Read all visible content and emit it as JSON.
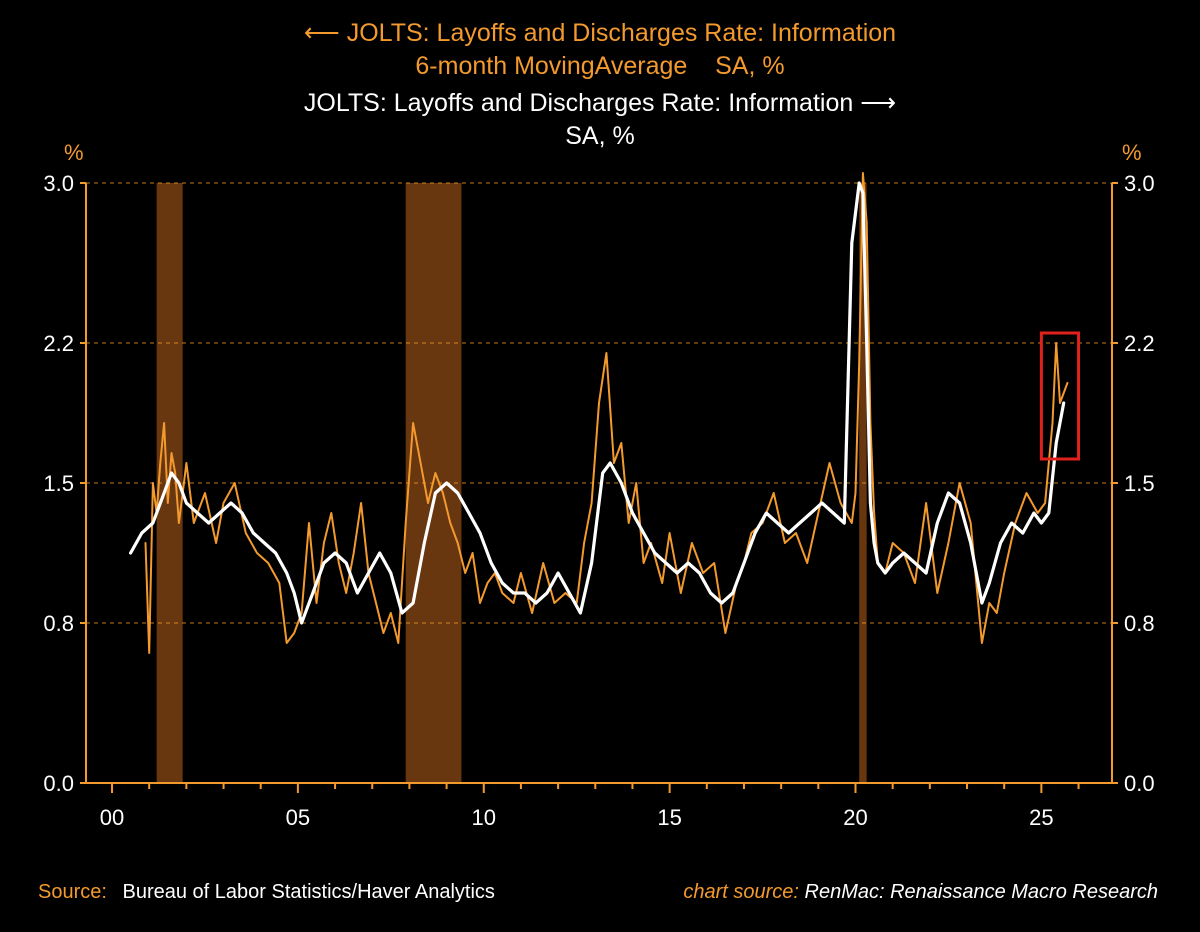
{
  "titles": {
    "orange_line1": "JOLTS: Layoffs and Discharges Rate: Information",
    "orange_line2": "6-month MovingAverage    SA, %",
    "white_line1": "JOLTS: Layoffs and Discharges Rate: Information",
    "white_line2": "SA, %"
  },
  "units": {
    "left": "%",
    "right": "%"
  },
  "footer": {
    "source_label": "Source:",
    "source_text": "Bureau of Labor Statistics/Haver Analytics",
    "chart_source_label": "chart source:",
    "chart_source_text": "RenMac: Renaissance Macro Research"
  },
  "colors": {
    "background": "#000000",
    "monthly": "#f39a2e",
    "average": "#ffffff",
    "recession": "#7a3f12",
    "highlight": "#e0211c",
    "axis": "#f39a2e"
  },
  "chart_data": {
    "type": "line",
    "x_axis": {
      "range": [
        1999.3,
        2026.9
      ],
      "ticks": [
        2000,
        2005,
        2010,
        2015,
        2020,
        2025
      ],
      "tick_labels": [
        "00",
        "05",
        "10",
        "15",
        "20",
        "25"
      ]
    },
    "y_left": {
      "range": [
        0.0,
        3.0
      ],
      "ticks": [
        0.0,
        0.8,
        1.5,
        2.2,
        3.0
      ],
      "tick_labels": [
        "0.0",
        "0.8",
        "1.5",
        "2.2",
        "3.0"
      ]
    },
    "y_right": {
      "range": [
        0.0,
        3.0
      ],
      "ticks": [
        0.0,
        0.8,
        1.5,
        2.2,
        3.0
      ],
      "tick_labels": [
        "0.0",
        "0.8",
        "1.5",
        "2.2",
        "3.0"
      ]
    },
    "gridlines": "horizontal dashed at 0.8, 1.5, 2.2, 3.0",
    "recession_shading": [
      [
        2001.2,
        2001.9
      ],
      [
        2007.9,
        2009.4
      ],
      [
        2020.1,
        2020.3
      ]
    ],
    "highlight_box": {
      "x": [
        2025.0,
        2026.0
      ],
      "y": [
        1.62,
        2.25
      ]
    },
    "series": [
      {
        "name": "JOLTS: Layoffs and Discharges Rate: Information, SA, %",
        "color": "#f39a2e",
        "x": [
          2000.9,
          2001.0,
          2001.1,
          2001.2,
          2001.3,
          2001.4,
          2001.5,
          2001.6,
          2001.7,
          2001.8,
          2001.9,
          2002.0,
          2002.2,
          2002.5,
          2002.8,
          2003.0,
          2003.3,
          2003.6,
          2003.9,
          2004.2,
          2004.5,
          2004.7,
          2004.9,
          2005.1,
          2005.3,
          2005.5,
          2005.7,
          2005.9,
          2006.1,
          2006.3,
          2006.5,
          2006.7,
          2006.9,
          2007.1,
          2007.3,
          2007.5,
          2007.7,
          2007.9,
          2008.1,
          2008.3,
          2008.5,
          2008.7,
          2008.9,
          2009.1,
          2009.3,
          2009.5,
          2009.7,
          2009.9,
          2010.1,
          2010.3,
          2010.5,
          2010.8,
          2011.0,
          2011.3,
          2011.6,
          2011.9,
          2012.2,
          2012.5,
          2012.7,
          2012.9,
          2013.1,
          2013.3,
          2013.5,
          2013.7,
          2013.9,
          2014.1,
          2014.3,
          2014.5,
          2014.8,
          2015.0,
          2015.3,
          2015.6,
          2015.9,
          2016.2,
          2016.5,
          2016.8,
          2017.0,
          2017.2,
          2017.5,
          2017.8,
          2018.1,
          2018.4,
          2018.7,
          2019.0,
          2019.3,
          2019.6,
          2019.9,
          2020.0,
          2020.1,
          2020.2,
          2020.3,
          2020.4,
          2020.5,
          2020.6,
          2020.8,
          2021.0,
          2021.3,
          2021.6,
          2021.9,
          2022.2,
          2022.5,
          2022.8,
          2023.1,
          2023.4,
          2023.6,
          2023.8,
          2024.0,
          2024.3,
          2024.6,
          2024.9,
          2025.1,
          2025.3,
          2025.4,
          2025.5,
          2025.7
        ],
        "values": [
          1.2,
          0.65,
          1.5,
          1.35,
          1.6,
          1.8,
          1.4,
          1.65,
          1.55,
          1.3,
          1.45,
          1.6,
          1.3,
          1.45,
          1.2,
          1.4,
          1.5,
          1.25,
          1.15,
          1.1,
          1.0,
          0.7,
          0.75,
          0.85,
          1.3,
          0.9,
          1.2,
          1.35,
          1.1,
          0.95,
          1.15,
          1.4,
          1.05,
          0.9,
          0.75,
          0.85,
          0.7,
          1.3,
          1.8,
          1.6,
          1.4,
          1.55,
          1.45,
          1.3,
          1.2,
          1.05,
          1.15,
          0.9,
          1.0,
          1.05,
          0.95,
          0.9,
          1.05,
          0.85,
          1.1,
          0.9,
          0.95,
          0.9,
          1.2,
          1.4,
          1.9,
          2.15,
          1.6,
          1.7,
          1.3,
          1.5,
          1.1,
          1.2,
          1.0,
          1.25,
          0.95,
          1.2,
          1.05,
          1.1,
          0.75,
          1.0,
          1.1,
          1.25,
          1.3,
          1.45,
          1.2,
          1.25,
          1.1,
          1.35,
          1.6,
          1.4,
          1.3,
          1.45,
          2.1,
          3.05,
          2.8,
          1.8,
          1.35,
          1.1,
          1.05,
          1.2,
          1.15,
          1.0,
          1.4,
          0.95,
          1.2,
          1.5,
          1.3,
          0.7,
          0.9,
          0.85,
          1.05,
          1.3,
          1.45,
          1.35,
          1.4,
          1.8,
          2.2,
          1.9,
          2.0
        ],
        "note": "monthly values estimated from the plotted line; approximate"
      },
      {
        "name": "JOLTS: Layoffs and Discharges Rate: Information, 6-month MovingAverage, SA, %",
        "color": "#ffffff",
        "x": [
          2000.5,
          2000.8,
          2001.1,
          2001.4,
          2001.6,
          2001.8,
          2002.0,
          2002.3,
          2002.6,
          2002.9,
          2003.2,
          2003.5,
          2003.8,
          2004.1,
          2004.4,
          2004.7,
          2004.9,
          2005.1,
          2005.4,
          2005.7,
          2006.0,
          2006.3,
          2006.6,
          2006.9,
          2007.2,
          2007.5,
          2007.8,
          2008.1,
          2008.4,
          2008.7,
          2009.0,
          2009.3,
          2009.6,
          2009.9,
          2010.2,
          2010.5,
          2010.8,
          2011.1,
          2011.4,
          2011.7,
          2012.0,
          2012.3,
          2012.6,
          2012.9,
          2013.2,
          2013.4,
          2013.7,
          2014.0,
          2014.3,
          2014.6,
          2014.9,
          2015.2,
          2015.5,
          2015.8,
          2016.1,
          2016.4,
          2016.7,
          2017.0,
          2017.3,
          2017.6,
          2017.9,
          2018.2,
          2018.5,
          2018.8,
          2019.1,
          2019.4,
          2019.7,
          2019.9,
          2020.1,
          2020.2,
          2020.3,
          2020.4,
          2020.5,
          2020.6,
          2020.8,
          2021.0,
          2021.3,
          2021.6,
          2021.9,
          2022.2,
          2022.5,
          2022.8,
          2023.1,
          2023.4,
          2023.6,
          2023.9,
          2024.2,
          2024.5,
          2024.8,
          2025.0,
          2025.2,
          2025.4,
          2025.6
        ],
        "values": [
          1.15,
          1.25,
          1.3,
          1.45,
          1.55,
          1.5,
          1.4,
          1.35,
          1.3,
          1.35,
          1.4,
          1.35,
          1.25,
          1.2,
          1.15,
          1.05,
          0.95,
          0.8,
          0.95,
          1.1,
          1.15,
          1.1,
          0.95,
          1.05,
          1.15,
          1.05,
          0.85,
          0.9,
          1.2,
          1.45,
          1.5,
          1.45,
          1.35,
          1.25,
          1.1,
          1.0,
          0.95,
          0.95,
          0.9,
          0.95,
          1.05,
          0.95,
          0.85,
          1.1,
          1.55,
          1.6,
          1.5,
          1.35,
          1.25,
          1.15,
          1.1,
          1.05,
          1.1,
          1.05,
          0.95,
          0.9,
          0.95,
          1.1,
          1.25,
          1.35,
          1.3,
          1.25,
          1.3,
          1.35,
          1.4,
          1.35,
          1.3,
          2.7,
          3.0,
          2.95,
          2.2,
          1.4,
          1.2,
          1.1,
          1.05,
          1.1,
          1.15,
          1.1,
          1.05,
          1.3,
          1.45,
          1.4,
          1.2,
          0.9,
          1.0,
          1.2,
          1.3,
          1.25,
          1.35,
          1.3,
          1.35,
          1.7,
          1.9
        ],
        "note": "values estimated from the plotted line; approximate"
      }
    ]
  }
}
